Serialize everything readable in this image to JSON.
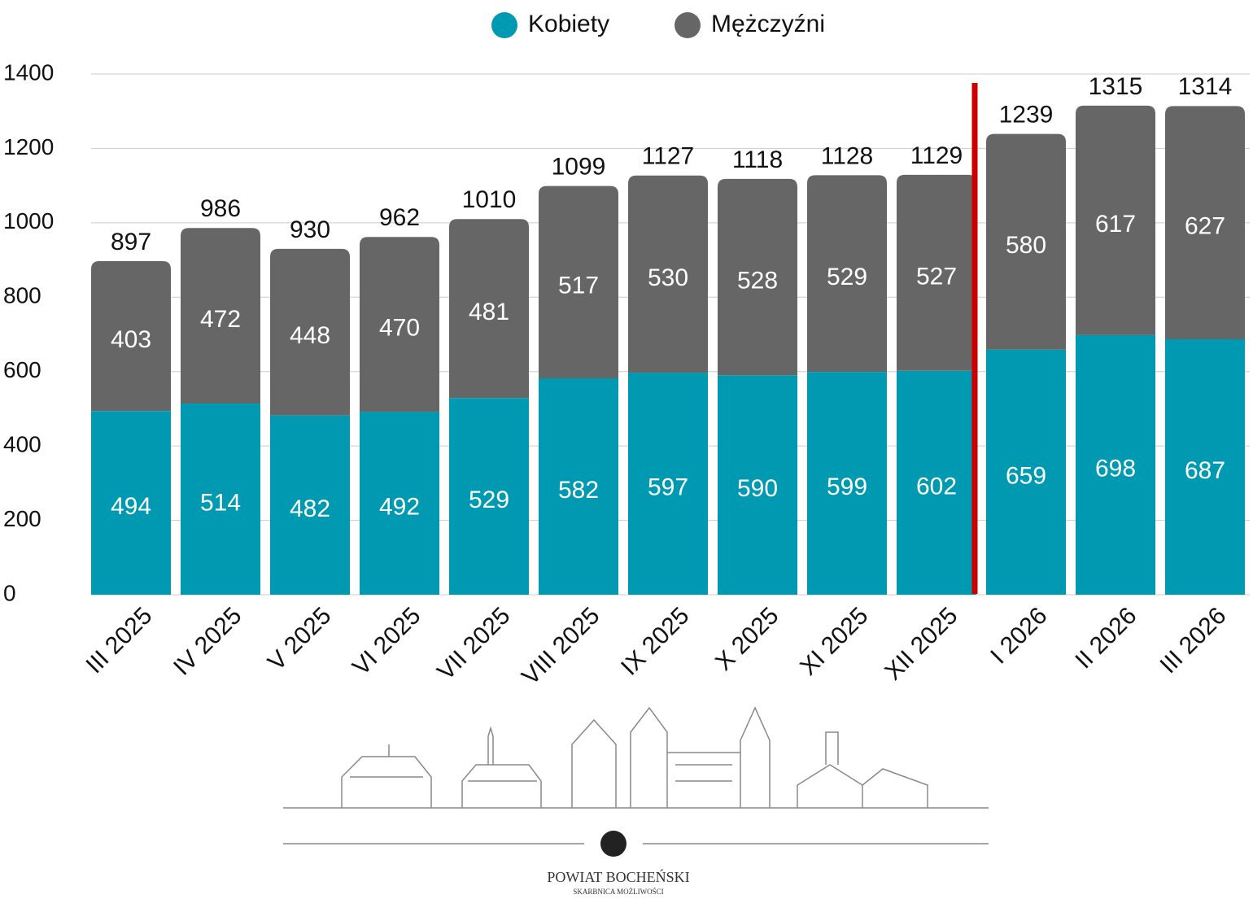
{
  "chart_data": {
    "type": "stacked_bar",
    "categories": [
      "III 2025",
      "IV 2025",
      "V 2025",
      "VI 2025",
      "VII 2025",
      "VIII 2025",
      "IX 2025",
      "X 2025",
      "XI 2025",
      "XII 2025",
      "I 2026",
      "II 2026",
      "III 2026"
    ],
    "series": [
      {
        "name": "Kobiety",
        "color": "#0099b2",
        "values": [
          494,
          514,
          482,
          492,
          529,
          582,
          597,
          590,
          599,
          602,
          659,
          698,
          687
        ]
      },
      {
        "name": "Mężczyźni",
        "color": "#666666",
        "values": [
          403,
          472,
          448,
          470,
          481,
          517,
          530,
          528,
          529,
          527,
          580,
          617,
          627
        ]
      }
    ],
    "totals": [
      897,
      986,
      930,
      962,
      1010,
      1099,
      1127,
      1118,
      1128,
      1129,
      1239,
      1315,
      1314
    ],
    "ylim": [
      0,
      1400
    ],
    "yticks": [
      0,
      200,
      400,
      600,
      800,
      1000,
      1200,
      1400
    ],
    "grid": true,
    "legend": "top"
  },
  "footer": {
    "title": "POWIAT BOCHEŃSKI",
    "subtitle": "SKARBNICA MOŻLIWOŚCI"
  }
}
